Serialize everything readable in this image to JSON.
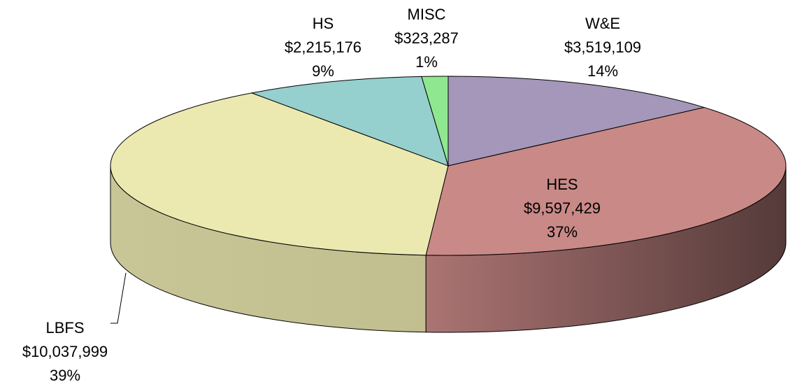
{
  "chart_data": {
    "type": "pie",
    "categories": [
      "W&E",
      "HES",
      "LBFS",
      "HS",
      "MISC"
    ],
    "values": [
      3519109,
      9597429,
      10037999,
      2215176,
      323287
    ],
    "value_labels": [
      "$3,519,109",
      "$9,597,429",
      "$10,037,999",
      "$2,215,176",
      "$323,287"
    ],
    "percent_labels": [
      "14%",
      "37%",
      "39%",
      "9%",
      "1%"
    ],
    "colors": [
      "#a497b9",
      "#c98987",
      "#ebe9b0",
      "#95cfce",
      "#8fe88f"
    ]
  }
}
